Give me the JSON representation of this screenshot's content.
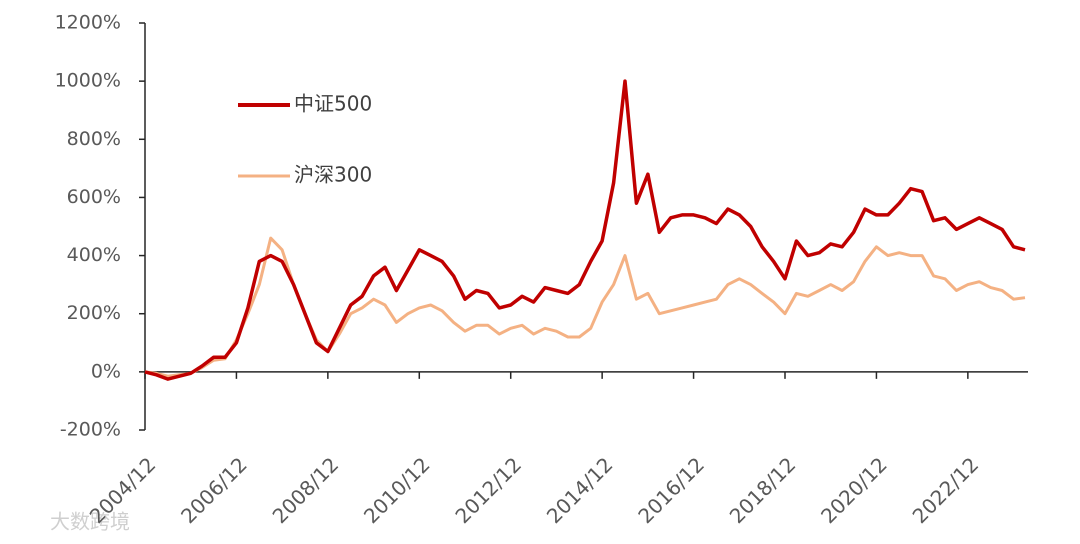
{
  "chart_data": {
    "type": "line",
    "x": [
      "2004/12",
      "2005/03",
      "2005/06",
      "2005/09",
      "2005/12",
      "2006/03",
      "2006/06",
      "2006/09",
      "2006/12",
      "2007/03",
      "2007/06",
      "2007/09",
      "2007/12",
      "2008/03",
      "2008/06",
      "2008/09",
      "2008/12",
      "2009/03",
      "2009/06",
      "2009/09",
      "2009/12",
      "2010/03",
      "2010/06",
      "2010/09",
      "2010/12",
      "2011/03",
      "2011/06",
      "2011/09",
      "2011/12",
      "2012/03",
      "2012/06",
      "2012/09",
      "2012/12",
      "2013/03",
      "2013/06",
      "2013/09",
      "2013/12",
      "2014/03",
      "2014/06",
      "2014/09",
      "2014/12",
      "2015/03",
      "2015/06",
      "2015/09",
      "2015/12",
      "2016/03",
      "2016/06",
      "2016/09",
      "2016/12",
      "2017/03",
      "2017/06",
      "2017/09",
      "2017/12",
      "2018/03",
      "2018/06",
      "2018/09",
      "2018/12",
      "2019/03",
      "2019/06",
      "2019/09",
      "2019/12",
      "2020/03",
      "2020/06",
      "2020/09",
      "2020/12",
      "2021/03",
      "2021/06",
      "2021/09",
      "2021/12",
      "2022/03",
      "2022/06",
      "2022/09",
      "2022/12",
      "2023/03",
      "2023/06",
      "2023/09",
      "2023/12",
      "2024/03"
    ],
    "series": [
      {
        "name": "中证500",
        "color": "#c00000",
        "values": [
          0,
          -10,
          -25,
          -15,
          -5,
          20,
          50,
          50,
          100,
          220,
          380,
          400,
          380,
          300,
          200,
          100,
          70,
          150,
          230,
          260,
          330,
          360,
          280,
          350,
          420,
          400,
          380,
          330,
          250,
          280,
          270,
          220,
          230,
          260,
          240,
          290,
          280,
          270,
          300,
          380,
          450,
          650,
          1000,
          580,
          680,
          480,
          530,
          540,
          540,
          530,
          510,
          560,
          540,
          500,
          430,
          380,
          320,
          450,
          400,
          410,
          440,
          430,
          480,
          560,
          540,
          540,
          580,
          630,
          620,
          520,
          530,
          490,
          510,
          530,
          510,
          490,
          430,
          420
        ]
      },
      {
        "name": "沪深300",
        "color": "#f4b183",
        "values": [
          0,
          -5,
          -15,
          -10,
          -5,
          15,
          40,
          45,
          110,
          200,
          300,
          460,
          420,
          300,
          200,
          110,
          70,
          130,
          200,
          220,
          250,
          230,
          170,
          200,
          220,
          230,
          210,
          170,
          140,
          160,
          160,
          130,
          150,
          160,
          130,
          150,
          140,
          120,
          120,
          150,
          240,
          300,
          400,
          250,
          270,
          200,
          210,
          220,
          230,
          240,
          250,
          300,
          320,
          300,
          270,
          240,
          200,
          270,
          260,
          280,
          300,
          280,
          310,
          380,
          430,
          400,
          410,
          400,
          400,
          330,
          320,
          280,
          300,
          310,
          290,
          280,
          250,
          255
        ]
      }
    ],
    "xlim": [
      "2004/12",
      "2024/03"
    ],
    "xticks": [
      "2004/12",
      "2006/12",
      "2008/12",
      "2010/12",
      "2012/12",
      "2014/12",
      "2016/12",
      "2018/12",
      "2020/12",
      "2022/12"
    ],
    "ylim": [
      -200,
      1200
    ],
    "yticks": [
      {
        "value": -200,
        "label": "-200%"
      },
      {
        "value": 0,
        "label": "0%"
      },
      {
        "value": 200,
        "label": "200%"
      },
      {
        "value": 400,
        "label": "400%"
      },
      {
        "value": 600,
        "label": "600%"
      },
      {
        "value": 800,
        "label": "800%"
      },
      {
        "value": 1000,
        "label": "1000%"
      },
      {
        "value": 1200,
        "label": "1200%"
      }
    ],
    "watermark": "大数跨境"
  }
}
